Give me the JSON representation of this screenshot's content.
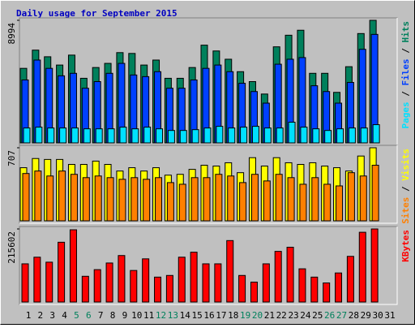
{
  "chart_data": [
    {
      "type": "bar",
      "title": "Daily usage for September 2015",
      "title_color": "#0000c0",
      "categories": [
        "1",
        "2",
        "3",
        "4",
        "5",
        "6",
        "7",
        "8",
        "9",
        "10",
        "11",
        "12",
        "13",
        "14",
        "15",
        "16",
        "17",
        "18",
        "19",
        "20",
        "21",
        "22",
        "23",
        "24",
        "25",
        "26",
        "27",
        "28",
        "29",
        "30",
        "31"
      ],
      "category_colors": [
        "#000000",
        "#000000",
        "#000000",
        "#000000",
        "#00805c",
        "#00805c",
        "#000000",
        "#000000",
        "#000000",
        "#000000",
        "#000000",
        "#00805c",
        "#00805c",
        "#000000",
        "#000000",
        "#000000",
        "#000000",
        "#000000",
        "#00805c",
        "#00805c",
        "#000000",
        "#000000",
        "#000000",
        "#000000",
        "#000000",
        "#00805c",
        "#00805c",
        "#000000",
        "#000000",
        "#000000",
        "#000000"
      ],
      "ylim": [
        0,
        8994
      ],
      "yticks": [
        8994
      ],
      "legend_separator": " / ",
      "series": [
        {
          "name": "Hits",
          "color": "#00805c",
          "values": [
            5469,
            6806,
            6320,
            5712,
            6441,
            4740,
            5530,
            5834,
            6624,
            6563,
            5712,
            6077,
            4740,
            4740,
            5530,
            7171,
            6745,
            6138,
            5226,
            4497,
            3585,
            7049,
            7900,
            8265,
            5105,
            5105,
            3707,
            5591,
            8022,
            8994,
            null
          ]
        },
        {
          "name": "Files",
          "color": "#0040ff",
          "values": [
            4619,
            6077,
            5469,
            4922,
            5105,
            4011,
            4497,
            5105,
            5834,
            4983,
            4862,
            5226,
            4011,
            4011,
            4619,
            5469,
            5712,
            5226,
            4375,
            3768,
            2917,
            5773,
            6138,
            6259,
            4193,
            3768,
            2917,
            4436,
            6867,
            7961,
            null
          ]
        },
        {
          "name": "Pages",
          "color": "#00e0ff",
          "values": [
            1094,
            1155,
            1094,
            1094,
            1094,
            1033,
            1033,
            1033,
            1155,
            1033,
            1155,
            1033,
            912,
            912,
            972,
            1094,
            1215,
            1094,
            1155,
            1215,
            1094,
            1094,
            1519,
            1155,
            1033,
            912,
            1033,
            1094,
            1094,
            1337,
            null
          ]
        }
      ]
    },
    {
      "type": "bar",
      "ylim": [
        0,
        707
      ],
      "yticks": [
        707
      ],
      "series": [
        {
          "name": "Visits",
          "color": "#ffff00",
          "values": [
            514,
            603,
            594,
            594,
            546,
            546,
            578,
            546,
            482,
            514,
            482,
            514,
            442,
            450,
            498,
            538,
            530,
            562,
            466,
            611,
            530,
            611,
            562,
            546,
            562,
            530,
            514,
            482,
            627,
            707,
            null
          ]
        },
        {
          "name": "Sites",
          "color": "#ff8000",
          "values": [
            458,
            482,
            434,
            482,
            450,
            418,
            434,
            418,
            402,
            418,
            402,
            418,
            370,
            354,
            418,
            418,
            450,
            434,
            370,
            450,
            386,
            450,
            418,
            354,
            418,
            354,
            338,
            466,
            434,
            538,
            null
          ]
        }
      ]
    },
    {
      "type": "bar",
      "ylim": [
        0,
        215602
      ],
      "yticks": [
        215602
      ],
      "series": [
        {
          "name": "KBytes",
          "color": "#ff0000",
          "values": [
            112701,
            132301,
            117601,
            176401,
            213152,
            75951,
            95551,
            115151,
            137201,
            93101,
            127401,
            73501,
            78401,
            132301,
            147001,
            112701,
            112701,
            181301,
            78401,
            58801,
            112701,
            149451,
            161701,
            98001,
            73501,
            56351,
            85751,
            134751,
            205802,
            215602,
            null
          ]
        }
      ]
    }
  ]
}
